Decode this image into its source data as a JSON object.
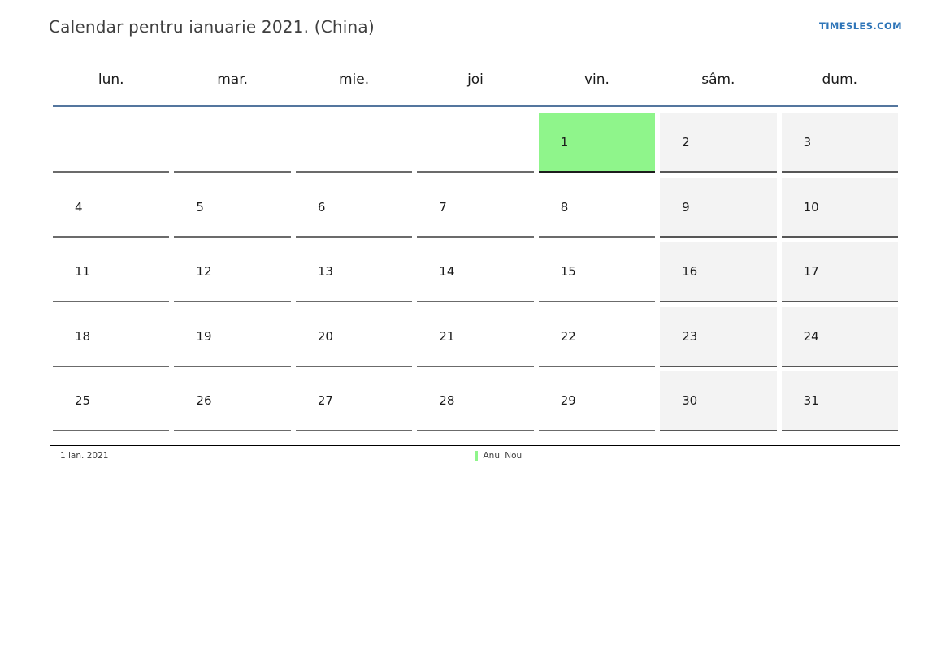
{
  "header": {
    "title": "Calendar pentru ianuarie 2021. (China)",
    "brand": "TIMESLES.COM"
  },
  "weekdays": [
    "lun.",
    "mar.",
    "mie.",
    "joi",
    "vin.",
    "sâm.",
    "dum."
  ],
  "calendar": {
    "weeks": [
      [
        "",
        "",
        "",
        "",
        "1",
        "2",
        "3"
      ],
      [
        "4",
        "5",
        "6",
        "7",
        "8",
        "9",
        "10"
      ],
      [
        "11",
        "12",
        "13",
        "14",
        "15",
        "16",
        "17"
      ],
      [
        "18",
        "19",
        "20",
        "21",
        "22",
        "23",
        "24"
      ],
      [
        "25",
        "26",
        "27",
        "28",
        "29",
        "30",
        "31"
      ]
    ]
  },
  "legend": {
    "date": "1 ian. 2021",
    "holiday": "Anul Nou"
  },
  "colors": {
    "holiday_green": "#8ff58b",
    "weekend_bg": "#f3f3f3",
    "header_line": "#54769e",
    "brand_blue": "#2e75b8"
  }
}
